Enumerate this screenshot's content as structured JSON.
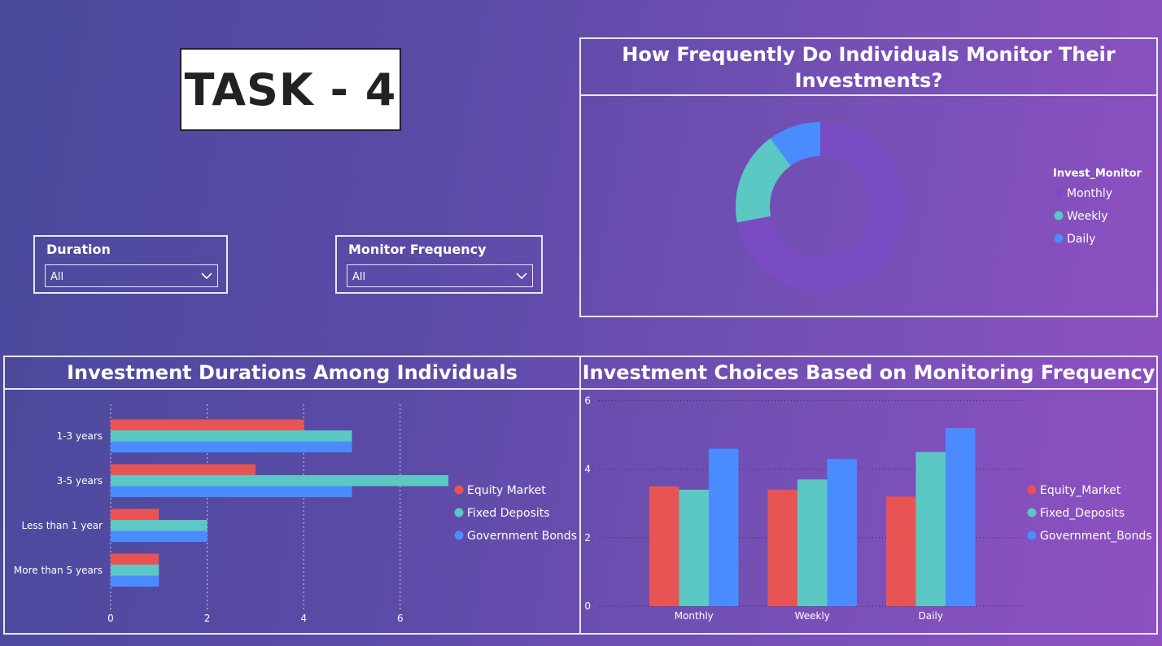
{
  "header": {
    "title": "TASK - 4"
  },
  "slicers": {
    "duration": {
      "label": "Duration",
      "value": "All"
    },
    "monitor_frequency": {
      "label": "Monitor Frequency",
      "value": "All"
    }
  },
  "panels": {
    "donut": {
      "title_line1": "How Frequently Do Individuals Monitor Their",
      "title_line2": "Investments?"
    },
    "durations": {
      "title": "Investment Durations Among Individuals"
    },
    "choices": {
      "title": "Investment Choices Based on Monitoring Frequency"
    }
  },
  "colors": {
    "equity": "#e85454",
    "fixed": "#5cc8c4",
    "bonds": "#4a8cff",
    "monthly": "#7a4cc4"
  },
  "chart_data": [
    {
      "type": "pie",
      "donut": true,
      "legend_title": "Invest_Monitor",
      "legend_position": "right",
      "slices": [
        {
          "label": "Monthly",
          "value": 72,
          "color": "#7a4cc4"
        },
        {
          "label": "Weekly",
          "value": 18,
          "color": "#5cc8c4"
        },
        {
          "label": "Daily",
          "value": 10,
          "color": "#4a8cff"
        }
      ]
    },
    {
      "type": "bar",
      "orientation": "horizontal",
      "categories": [
        "1-3 years",
        "3-5 years",
        "Less than 1 year",
        "More than 5 years"
      ],
      "series": [
        {
          "name": "Equity Market",
          "values": [
            4,
            3,
            1,
            1
          ],
          "color": "#e85454"
        },
        {
          "name": "Fixed Deposits",
          "values": [
            5,
            7,
            2,
            1
          ],
          "color": "#5cc8c4"
        },
        {
          "name": "Government Bonds",
          "values": [
            5,
            5,
            2,
            1
          ],
          "color": "#4a8cff"
        }
      ],
      "xlim": [
        0,
        7.5
      ],
      "xticks": [
        0,
        2,
        4,
        6
      ],
      "grid": true,
      "legend_position": "right"
    },
    {
      "type": "bar",
      "orientation": "vertical",
      "categories": [
        "Monthly",
        "Weekly",
        "Daily"
      ],
      "series": [
        {
          "name": "Equity_Market",
          "values": [
            3.5,
            3.4,
            3.2
          ],
          "color": "#e85454"
        },
        {
          "name": "Fixed_Deposits",
          "values": [
            3.4,
            3.7,
            4.5
          ],
          "color": "#5cc8c4"
        },
        {
          "name": "Government_Bonds",
          "values": [
            4.6,
            4.3,
            5.2
          ],
          "color": "#4a8cff"
        }
      ],
      "ylim": [
        0,
        6
      ],
      "yticks": [
        0,
        2,
        4,
        6
      ],
      "grid": true,
      "legend_position": "right"
    }
  ]
}
